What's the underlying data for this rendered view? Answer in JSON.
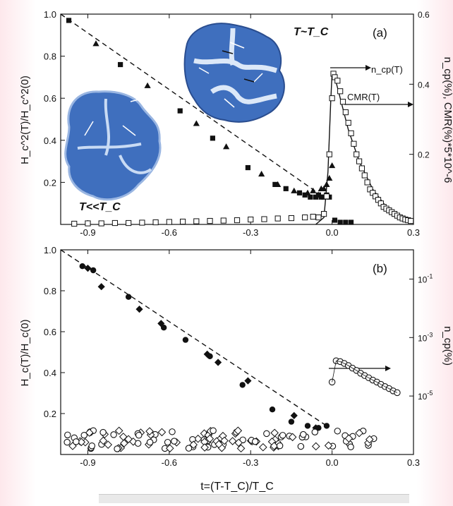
{
  "figure": {
    "panel_a": {
      "label": "(a)",
      "ylabel_left": "H_c^2(T)/H_c^2(0)",
      "ylabel_right": "n_cp(%), CMR(%)*5*10^-6",
      "annot_ncp": "n_cp(T)",
      "annot_cmr": "CMR(T)",
      "label_near_tc": "T~T_C",
      "label_low_t": "T<<T_C"
    },
    "panel_b": {
      "label": "(b)",
      "ylabel_left": "H_c(T)/H_c(0)",
      "ylabel_right": "n_cp(%)"
    },
    "xlabel": "t=(T-T_C)/T_C"
  },
  "chart_data": [
    {
      "panel": "a",
      "type": "scatter",
      "xlim": [
        -1.0,
        0.3
      ],
      "ylim_left": [
        0.0,
        1.0
      ],
      "ylim_right": [
        0.0,
        0.6
      ],
      "x_ticks": [
        "-0.9",
        "-0.6",
        "-0.3",
        "0.0",
        "0.3"
      ],
      "y_ticks_left": [
        "0.2",
        "0.4",
        "0.6",
        "0.8",
        "1.0"
      ],
      "y_ticks_right": [
        "0.2",
        "0.4",
        "0.6"
      ],
      "series": [
        {
          "marker": "square-filled",
          "axis": "left",
          "x": [
            -0.97,
            -0.78,
            -0.56,
            -0.44,
            -0.31,
            -0.21,
            -0.17,
            -0.12,
            -0.1,
            -0.08,
            -0.06,
            -0.05,
            -0.04,
            -0.03,
            -0.02,
            -0.01,
            0.01,
            0.03,
            0.05,
            0.07
          ],
          "y": [
            0.97,
            0.76,
            0.54,
            0.41,
            0.27,
            0.19,
            0.17,
            0.15,
            0.14,
            0.13,
            0.13,
            0.14,
            0.13,
            0.13,
            0.14,
            0.13,
            0.02,
            0.01,
            0.01,
            0.01
          ]
        },
        {
          "marker": "triangle-filled",
          "axis": "left",
          "x": [
            -0.87,
            -0.68,
            -0.5,
            -0.39,
            -0.26,
            -0.2,
            -0.14,
            -0.09,
            -0.07,
            -0.05,
            -0.04,
            -0.03,
            -0.02,
            -0.01,
            0.0
          ],
          "y": [
            0.86,
            0.66,
            0.48,
            0.37,
            0.24,
            0.19,
            0.16,
            0.15,
            0.16,
            0.14,
            0.17,
            0.17,
            0.19,
            0.22,
            0.28
          ]
        },
        {
          "marker": "square-open",
          "axis": "right",
          "x": [
            -0.95,
            -0.9,
            -0.85,
            -0.8,
            -0.75,
            -0.7,
            -0.65,
            -0.6,
            -0.55,
            -0.5,
            -0.45,
            -0.4,
            -0.35,
            -0.3,
            -0.25,
            -0.2,
            -0.15,
            -0.1,
            -0.07,
            -0.05,
            -0.03,
            -0.02,
            -0.01,
            0.0,
            0.005,
            0.01,
            0.02,
            0.03,
            0.04,
            0.05,
            0.06,
            0.07,
            0.08,
            0.09,
            0.1,
            0.11,
            0.12,
            0.13,
            0.14,
            0.15,
            0.16,
            0.17,
            0.18,
            0.19,
            0.2,
            0.21,
            0.22,
            0.23,
            0.24,
            0.25,
            0.26,
            0.27,
            0.28,
            0.29
          ],
          "y": [
            0.002,
            0.003,
            0.003,
            0.004,
            0.004,
            0.005,
            0.006,
            0.007,
            0.008,
            0.009,
            0.01,
            0.011,
            0.012,
            0.014,
            0.015,
            0.017,
            0.018,
            0.02,
            0.022,
            0.02,
            0.03,
            0.08,
            0.2,
            0.36,
            0.43,
            0.42,
            0.41,
            0.38,
            0.35,
            0.32,
            0.29,
            0.26,
            0.23,
            0.2,
            0.18,
            0.16,
            0.14,
            0.12,
            0.1,
            0.09,
            0.08,
            0.07,
            0.06,
            0.05,
            0.045,
            0.04,
            0.035,
            0.03,
            0.025,
            0.02,
            0.017,
            0.014,
            0.012,
            0.01
          ]
        }
      ],
      "fit_dashed": {
        "x": [
          -1.0,
          -0.03
        ],
        "y": [
          1.0,
          0.13
        ]
      },
      "fit_ncp_line": {
        "x": [
          -0.06,
          -0.03,
          -0.015,
          -0.005,
          0.0,
          0.01,
          0.03,
          0.06,
          0.1,
          0.15,
          0.2,
          0.25,
          0.3
        ],
        "y": [
          0.0,
          0.02,
          0.15,
          0.35,
          0.43,
          0.42,
          0.36,
          0.27,
          0.18,
          0.1,
          0.05,
          0.025,
          0.01
        ]
      }
    },
    {
      "panel": "b",
      "type": "scatter",
      "xlim": [
        -1.0,
        0.3
      ],
      "ylim_left": [
        0.0,
        1.0
      ],
      "ylim_right_log": [
        1e-07,
        1.0
      ],
      "x_ticks": [
        "-0.9",
        "-0.6",
        "-0.3",
        "0.0",
        "0.3"
      ],
      "y_ticks_left": [
        "0.2",
        "0.4",
        "0.6",
        "0.8",
        "1.0"
      ],
      "y_ticks_right": [
        "10^-5",
        "10^-3",
        "10^-1"
      ],
      "series": [
        {
          "marker": "circle-filled",
          "axis": "left",
          "x": [
            -0.92,
            -0.88,
            -0.75,
            -0.62,
            -0.54,
            -0.45,
            -0.33,
            -0.22,
            -0.15,
            -0.09,
            -0.05,
            -0.02
          ],
          "y": [
            0.92,
            0.9,
            0.77,
            0.62,
            0.56,
            0.48,
            0.34,
            0.22,
            0.16,
            0.14,
            0.13,
            0.14
          ]
        },
        {
          "marker": "diamond-filled",
          "axis": "left",
          "x": [
            -0.9,
            -0.85,
            -0.71,
            -0.63,
            -0.46,
            -0.42,
            -0.31,
            -0.14,
            -0.06
          ],
          "y": [
            0.91,
            0.82,
            0.71,
            0.64,
            0.49,
            0.45,
            0.36,
            0.19,
            0.13
          ]
        },
        {
          "marker": "circle-open",
          "axis": "right",
          "x": [
            0.0,
            0.015,
            0.03,
            0.045,
            0.06,
            0.075,
            0.09,
            0.105,
            0.12,
            0.135,
            0.15,
            0.165,
            0.18,
            0.195,
            0.21,
            0.225,
            0.24
          ],
          "y": [
            3e-05,
            0.00016,
            0.00015,
            0.00013,
            0.00011,
            9e-05,
            7.5e-05,
            6e-05,
            5e-05,
            4.2e-05,
            3.5e-05,
            3e-05,
            2.5e-05,
            2.1e-05,
            1.8e-05,
            1.5e-05,
            1.3e-05
          ]
        }
      ],
      "fit_dashed": {
        "x": [
          -1.0,
          -0.02
        ],
        "y": [
          1.0,
          0.14
        ]
      }
    }
  ]
}
